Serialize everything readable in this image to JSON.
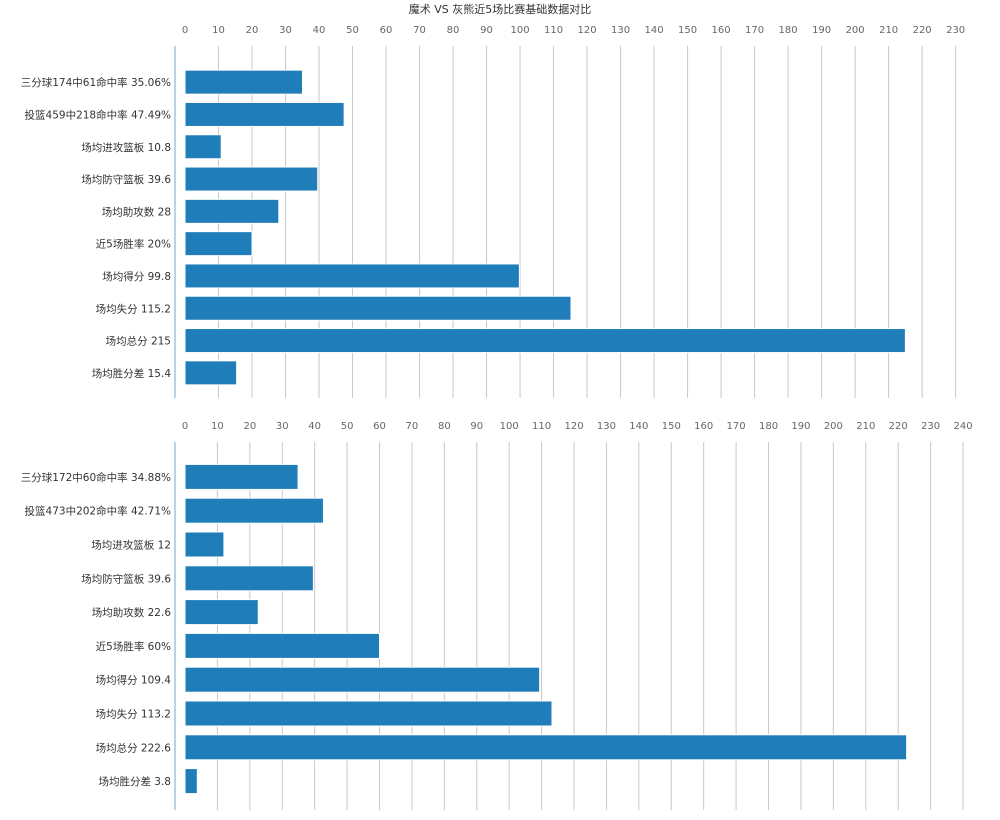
{
  "title": "魔术 VS 灰熊近5场比赛基础数据对比",
  "colors": {
    "bar": "#1f7dba",
    "bar_stroke": "#ffffff",
    "grid": "#c8c8c8",
    "axis": "#6fa6d6",
    "tick_text": "#666666",
    "label_text": "#333333"
  },
  "chart_data": [
    {
      "type": "bar",
      "orientation": "horizontal",
      "xlim": [
        0,
        230
      ],
      "xticks": [
        0,
        10,
        20,
        30,
        40,
        50,
        60,
        70,
        80,
        90,
        100,
        110,
        120,
        130,
        140,
        150,
        160,
        170,
        180,
        190,
        200,
        210,
        220,
        230
      ],
      "grid": true,
      "categories": [
        "三分球174中61命中率 35.06%",
        "投篮459中218命中率 47.49%",
        "场均进攻篮板 10.8",
        "场均防守篮板 39.6",
        "场均助攻数 28",
        "近5场胜率 20%",
        "场均得分 99.8",
        "场均失分 115.2",
        "场均总分 215",
        "场均胜分差 15.4"
      ],
      "values": [
        35.06,
        47.49,
        10.8,
        39.6,
        28,
        20,
        99.8,
        115.2,
        215,
        15.4
      ]
    },
    {
      "type": "bar",
      "orientation": "horizontal",
      "xlim": [
        0,
        240
      ],
      "xticks": [
        0,
        10,
        20,
        30,
        40,
        50,
        60,
        70,
        80,
        90,
        100,
        110,
        120,
        130,
        140,
        150,
        160,
        170,
        180,
        190,
        200,
        210,
        220,
        230,
        240
      ],
      "grid": true,
      "categories": [
        "三分球172中60命中率 34.88%",
        "投篮473中202命中率 42.71%",
        "场均进攻篮板 12",
        "场均防守篮板 39.6",
        "场均助攻数 22.6",
        "近5场胜率 60%",
        "场均得分 109.4",
        "场均失分 113.2",
        "场均总分 222.6",
        "场均胜分差 3.8"
      ],
      "values": [
        34.88,
        42.71,
        12,
        39.6,
        22.6,
        60,
        109.4,
        113.2,
        222.6,
        3.8
      ]
    }
  ]
}
